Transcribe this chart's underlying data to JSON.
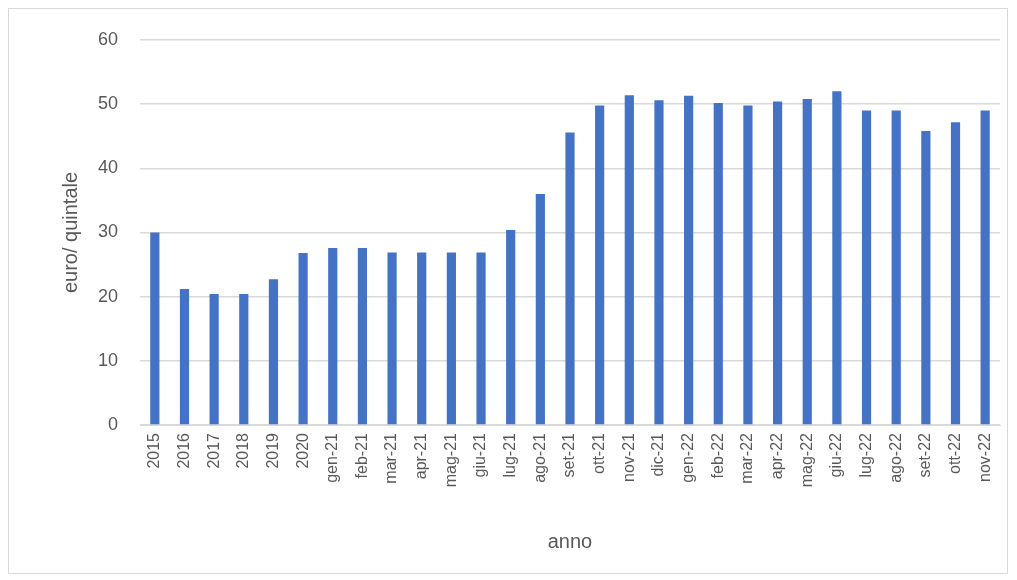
{
  "chart_data": {
    "type": "bar",
    "xlabel": "anno",
    "ylabel": "euro/ quintale",
    "categories": [
      "2015",
      "2016",
      "2017",
      "2018",
      "2019",
      "2020",
      "gen-21",
      "feb-21",
      "mar-21",
      "apr-21",
      "mag-21",
      "giu-21",
      "lug-21",
      "ago-21",
      "set-21",
      "ott-21",
      "nov-21",
      "dic-21",
      "gen-22",
      "feb-22",
      "mar-22",
      "apr-22",
      "mag-22",
      "giu-22",
      "lug-22",
      "ago-22",
      "set-22",
      "ott-22",
      "nov-22"
    ],
    "values": [
      30,
      21.2,
      20.4,
      20.4,
      22.7,
      26.8,
      27.6,
      27.6,
      26.9,
      26.9,
      26.9,
      26.9,
      30.4,
      36.0,
      45.6,
      49.8,
      51.4,
      50.6,
      51.3,
      50.2,
      49.8,
      50.4,
      50.8,
      52.0,
      49.0,
      49.0,
      45.8,
      47.2,
      49.0
    ],
    "color": "#4472c4",
    "ylim": [
      0,
      60
    ],
    "yticks": [
      0,
      10,
      20,
      30,
      40,
      50,
      60
    ],
    "grid": "y"
  }
}
